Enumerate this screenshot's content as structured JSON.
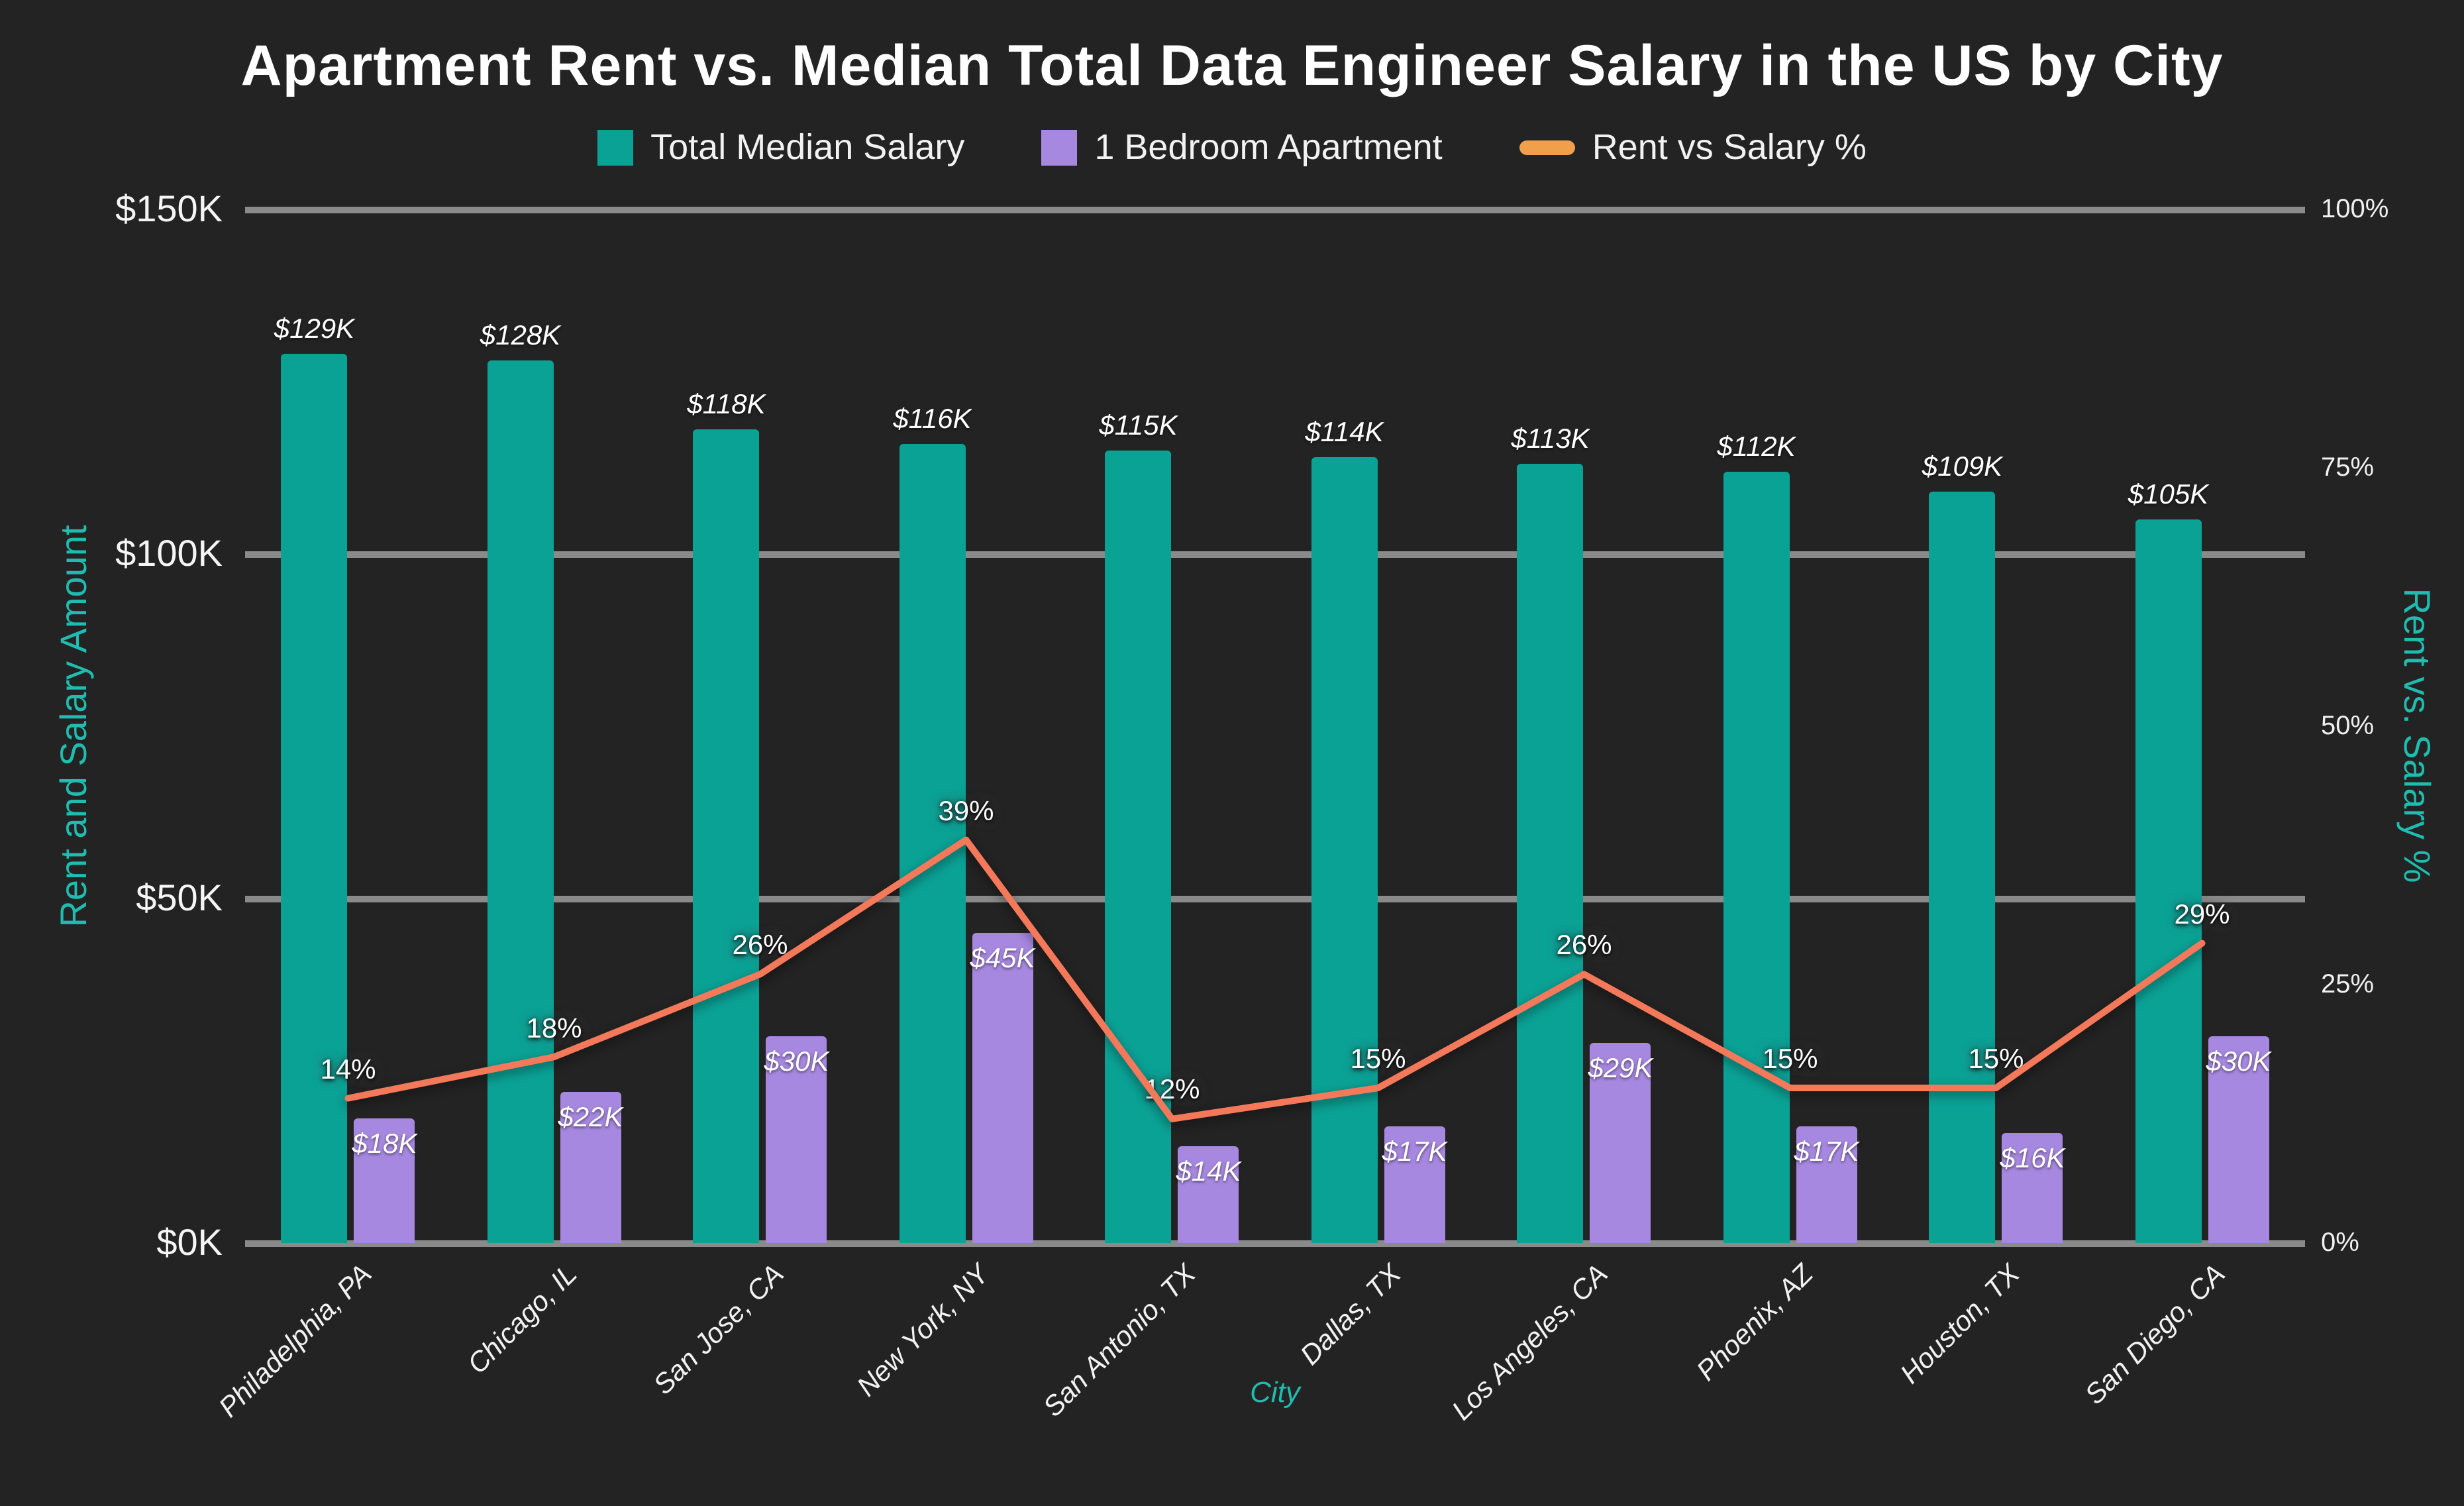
{
  "title": "Apartment Rent vs. Median Total Data Engineer Salary in the US by City",
  "legend": [
    {
      "label": "Total Median Salary",
      "color": "#0ba296",
      "shape": "square"
    },
    {
      "label": "1 Bedroom Apartment",
      "color": "#a788e0",
      "shape": "square"
    },
    {
      "label": "Rent vs Salary %",
      "color": "#f0a04a",
      "shape": "line"
    }
  ],
  "axes": {
    "left": {
      "title": "Rent and Salary Amount",
      "ticks": [
        "$0K",
        "$50K",
        "$100K",
        "$150K"
      ],
      "tick_values": [
        0,
        50,
        100,
        150
      ]
    },
    "right": {
      "title": "Rent vs. Salary %",
      "ticks": [
        "0%",
        "25%",
        "50%",
        "75%",
        "100%"
      ],
      "tick_values": [
        0,
        25,
        50,
        75,
        100
      ]
    },
    "x": {
      "title": "City"
    }
  },
  "colors": {
    "background": "#232323",
    "gridline": "#8a8a8a",
    "salary_bar": "#0ba296",
    "rent_bar": "#a788e0",
    "trend_line": "#f4795b",
    "axis_teal": "#1fbdb0"
  },
  "chart_data": {
    "type": "bar+line",
    "categories": [
      "Philadelphia, PA",
      "Chicago, IL",
      "San Jose, CA",
      "New York, NY",
      "San Antonio, TX",
      "Dallas, TX",
      "Los Angeles, CA",
      "Phoenix, AZ",
      "Houston, TX",
      "San Diego, CA"
    ],
    "series": [
      {
        "name": "Total Median Salary",
        "kind": "bar",
        "axis": "left",
        "color": "#0ba296",
        "values": [
          129,
          128,
          118,
          116,
          115,
          114,
          113,
          112,
          109,
          105
        ],
        "labels": [
          "$129K",
          "$128K",
          "$118K",
          "$116K",
          "$115K",
          "$114K",
          "$113K",
          "$112K",
          "$109K",
          "$105K"
        ]
      },
      {
        "name": "1 Bedroom Apartment",
        "kind": "bar",
        "axis": "left",
        "color": "#a788e0",
        "values": [
          18,
          22,
          30,
          45,
          14,
          17,
          29,
          17,
          16,
          30
        ],
        "labels": [
          "$18K",
          "$22K",
          "$30K",
          "$45K",
          "$14K",
          "$17K",
          "$29K",
          "$17K",
          "$16K",
          "$30K"
        ]
      },
      {
        "name": "Rent vs Salary %",
        "kind": "line",
        "axis": "right",
        "color": "#f4795b",
        "values": [
          14,
          18,
          26,
          39,
          12,
          15,
          26,
          15,
          15,
          29
        ],
        "labels": [
          "14%",
          "18%",
          "26%",
          "39%",
          "12%",
          "15%",
          "26%",
          "15%",
          "15%",
          "29%"
        ]
      }
    ],
    "ylim_left": [
      0,
      150
    ],
    "ylim_right": [
      0,
      100
    ],
    "units_left": "$K",
    "units_right": "%",
    "grid": true,
    "legend_position": "top"
  }
}
